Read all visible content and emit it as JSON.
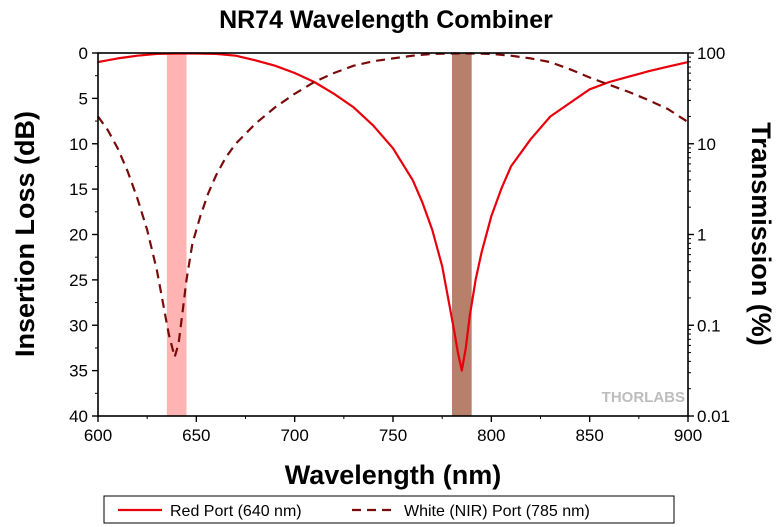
{
  "chart_data": {
    "type": "line",
    "title": "NR74 Wavelength Combiner",
    "xlabel": "Wavelength (nm)",
    "ylabel": "Insertion Loss (dB)",
    "y2label": "Transmission (%)",
    "xlim": [
      600,
      900
    ],
    "ylim": [
      0,
      40
    ],
    "y_inverted": true,
    "y2lim": [
      0.01,
      100
    ],
    "y2_scale": "log",
    "x_ticks": [
      "600",
      "650",
      "700",
      "750",
      "800",
      "850",
      "900"
    ],
    "y_ticks": [
      "0",
      "5",
      "10",
      "15",
      "20",
      "25",
      "30",
      "35",
      "40"
    ],
    "y2_ticks": [
      "100",
      "10",
      "1",
      "0.1",
      "0.01"
    ],
    "grid": false,
    "legend_position": "bottom",
    "highlight_bands": [
      {
        "x": [
          635,
          645
        ],
        "color": "#ffb3b3"
      },
      {
        "x": [
          780,
          790
        ],
        "color": "#b7806a"
      }
    ],
    "watermark": "THORLABS",
    "series": [
      {
        "name": "Red Port (640 nm)",
        "color": "#e8000b",
        "style": "solid",
        "x": [
          600,
          610,
          620,
          630,
          640,
          650,
          660,
          670,
          680,
          690,
          700,
          710,
          720,
          730,
          740,
          750,
          760,
          765,
          770,
          775,
          778,
          781,
          783,
          785,
          787,
          789,
          792,
          795,
          800,
          805,
          810,
          820,
          830,
          840,
          850,
          860,
          870,
          880,
          890,
          900
        ],
        "y": [
          1.0,
          0.6,
          0.3,
          0.1,
          0.05,
          0.05,
          0.1,
          0.3,
          0.8,
          1.4,
          2.2,
          3.2,
          4.5,
          6.0,
          8.0,
          10.5,
          14.0,
          16.5,
          19.5,
          23.5,
          27.0,
          30.5,
          33.0,
          35.0,
          32.5,
          29.0,
          25.0,
          22.0,
          18.0,
          15.0,
          12.5,
          9.5,
          7.0,
          5.5,
          4.0,
          3.2,
          2.6,
          2.0,
          1.5,
          1.0
        ]
      },
      {
        "name": "White (NIR) Port (785 nm)",
        "color": "#7a0b0b",
        "style": "dashed",
        "x": [
          600,
          605,
          610,
          615,
          620,
          625,
          630,
          633,
          636,
          639,
          641,
          643,
          645,
          648,
          652,
          656,
          660,
          665,
          670,
          680,
          690,
          700,
          710,
          720,
          730,
          740,
          750,
          760,
          770,
          780,
          790,
          800,
          810,
          820,
          830,
          840,
          850,
          860,
          870,
          880,
          890,
          900
        ],
        "y": [
          7.0,
          8.5,
          10.5,
          13.0,
          16.0,
          19.5,
          24.0,
          27.5,
          31.0,
          33.5,
          32.0,
          28.5,
          25.0,
          21.0,
          18.0,
          15.5,
          13.5,
          11.5,
          10.0,
          7.8,
          6.0,
          4.5,
          3.2,
          2.2,
          1.4,
          0.9,
          0.6,
          0.3,
          0.1,
          0.05,
          0.05,
          0.1,
          0.3,
          0.6,
          1.0,
          1.8,
          2.7,
          3.5,
          4.3,
          5.2,
          6.2,
          7.6
        ]
      }
    ]
  }
}
